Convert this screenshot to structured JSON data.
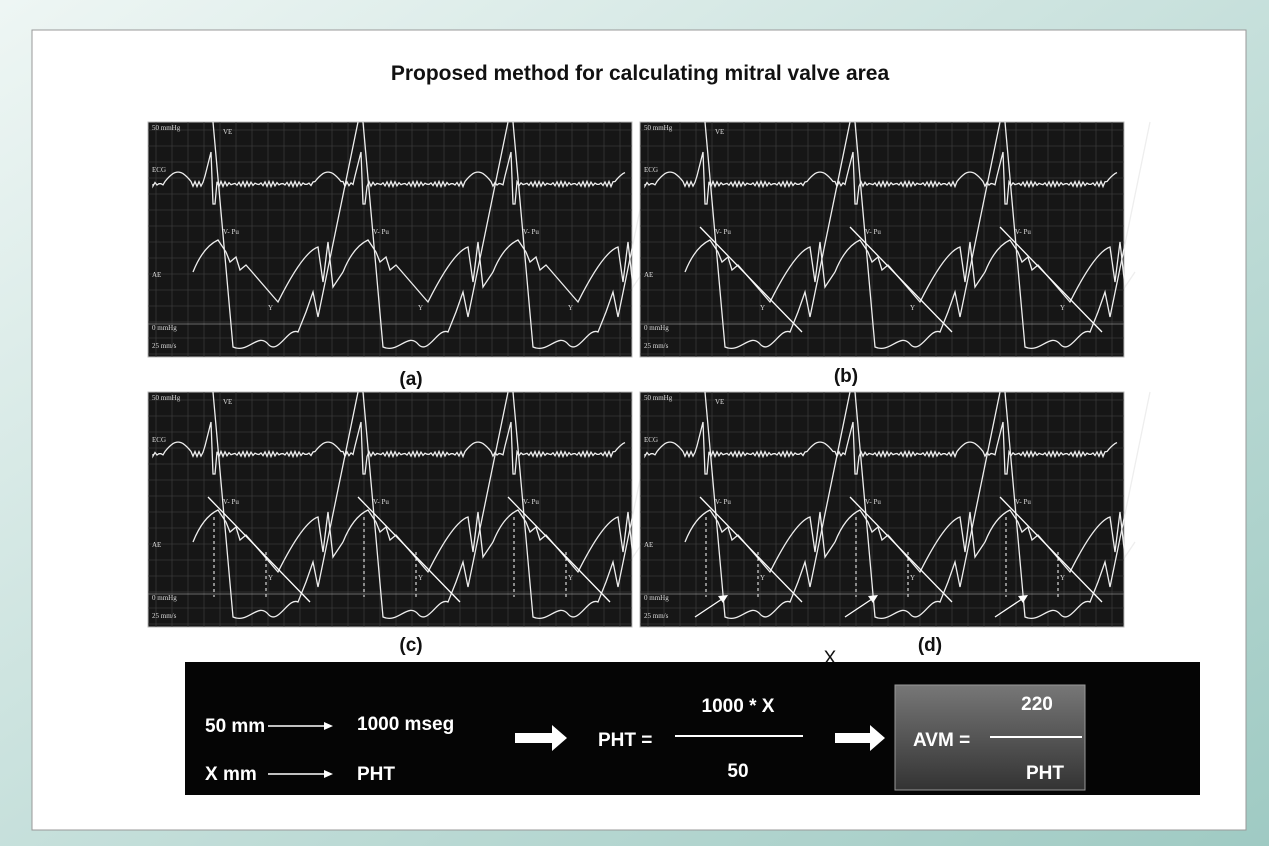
{
  "title": "Proposed method for calculating mitral valve area",
  "panels": [
    {
      "caption": "(a)",
      "labels": [
        "50 mmHg",
        "VE",
        "ECG",
        "V- Pu",
        "V- Pu",
        "V- Pu",
        "AE",
        "Y",
        "Y",
        "Y",
        "0 mmHg",
        "25 mm/s"
      ]
    },
    {
      "caption": "(b)",
      "labels": [
        "50 mmHg",
        "VE",
        "ECG",
        "V- Pu",
        "V- Pu",
        "V- Pu",
        "AE",
        "Y",
        "Y",
        "Y",
        "0 mmHg",
        "25 mm/s"
      ]
    },
    {
      "caption": "(c)",
      "labels": [
        "50 mmHg",
        "VE",
        "ECG",
        "V- Pu",
        "V- Pu",
        "V- Pu",
        "AE",
        "Y",
        "Y",
        "Y",
        "0 mmHg",
        "25 mm/s"
      ]
    },
    {
      "caption": "(d)",
      "labels": [
        "50 mmHg",
        "VE",
        "ECG",
        "V- Pu",
        "V- Pu",
        "V- Pu",
        "AE",
        "Y",
        "Y",
        "Y",
        "0 mmHg",
        "25 mm/s"
      ]
    }
  ],
  "x_label": "X",
  "formula": {
    "row1": [
      "50 mm",
      "1000 mseg"
    ],
    "row2": [
      "X mm",
      "PHT"
    ],
    "pht_lhs": "PHT =",
    "pht_numerator": "1000 * X",
    "pht_denominator": "50",
    "avm_lhs": "AVM =",
    "avm_numerator": "220",
    "avm_denominator": "PHT"
  }
}
